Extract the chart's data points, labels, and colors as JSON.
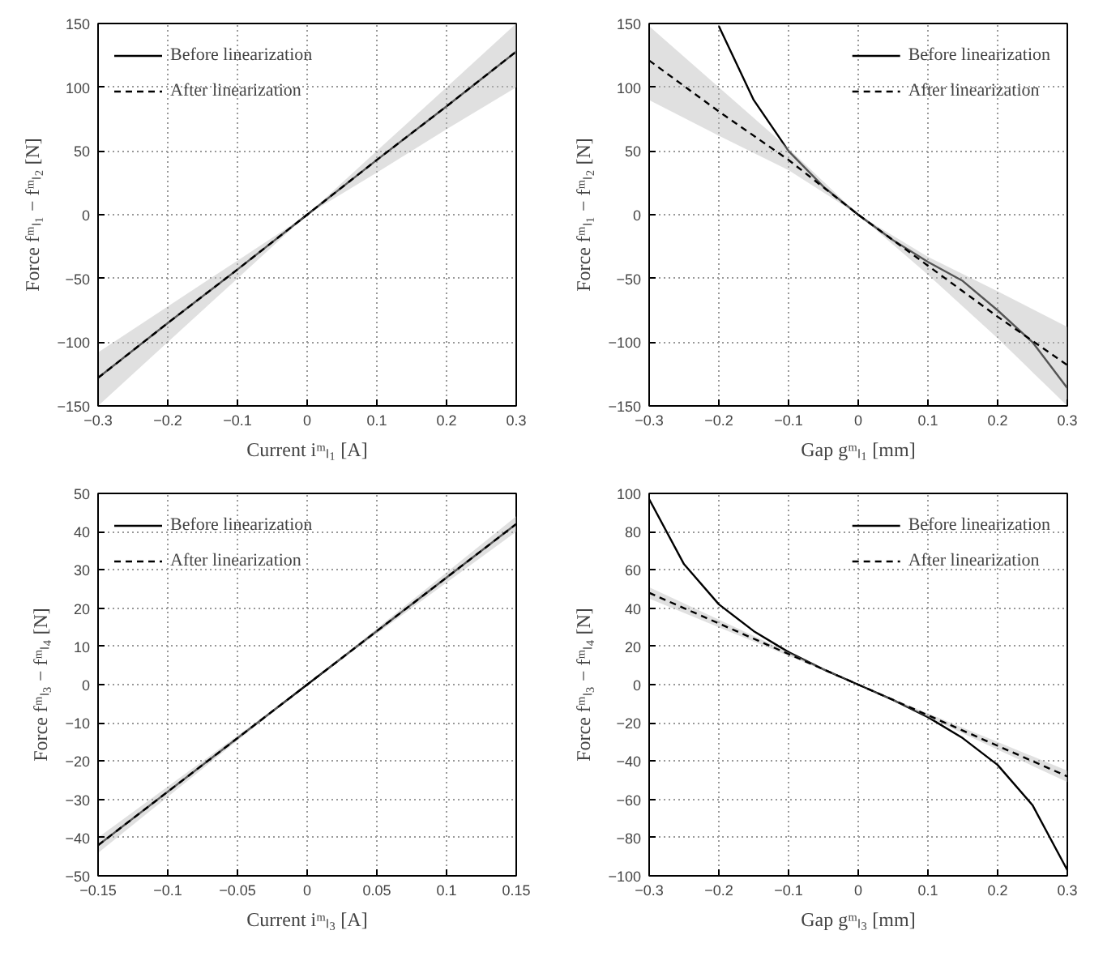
{
  "chart_data": [
    {
      "type": "line",
      "xlabel": "Current iᵐₗ₁ [A]",
      "ylabel": "Force fᵐₗ₁ − fᵐₗ₂ [N]",
      "xlim": [
        -0.3,
        0.3
      ],
      "ylim": [
        -150,
        150
      ],
      "xticks": [
        -0.3,
        -0.2,
        -0.1,
        0,
        0.1,
        0.2,
        0.3
      ],
      "yticks": [
        -150,
        -100,
        -50,
        0,
        50,
        100,
        150
      ],
      "grid": true,
      "legend": "top left",
      "series": [
        {
          "name": "Before linearization",
          "color": "#000000",
          "line_style": "solid",
          "x": [
            -0.3,
            -0.2,
            -0.1,
            0,
            0.1,
            0.2,
            0.3
          ],
          "values": [
            -128,
            -85,
            -43,
            0,
            43,
            85,
            128
          ]
        },
        {
          "name": "After linearization",
          "color": "#000000",
          "line_style": "dashed",
          "x": [
            -0.3,
            -0.2,
            -0.1,
            0,
            0.1,
            0.2,
            0.3
          ],
          "values": [
            -128,
            -85,
            -43,
            0,
            43,
            85,
            128
          ],
          "lower": [
            -150,
            -100,
            -50,
            0,
            33,
            67,
            100
          ],
          "upper": [
            -108,
            -72,
            -36,
            0,
            50,
            100,
            150
          ]
        }
      ]
    },
    {
      "type": "line",
      "xlabel": "Gap gᵐₗ₁ [mm]",
      "ylabel": "Force fᵐₗ₁ − fᵐₗ₂ [N]",
      "xlim": [
        -0.3,
        0.3
      ],
      "ylim": [
        -150,
        150
      ],
      "xticks": [
        -0.3,
        -0.2,
        -0.1,
        0,
        0.1,
        0.2,
        0.3
      ],
      "yticks": [
        -150,
        -100,
        -50,
        0,
        50,
        100,
        150
      ],
      "grid": true,
      "legend": "top right",
      "series": [
        {
          "name": "Before linearization",
          "color": "#000000",
          "line_style": "solid",
          "x": [
            -0.2,
            -0.15,
            -0.1,
            -0.05,
            0,
            0.05,
            0.1,
            0.15,
            0.2,
            0.25,
            0.3
          ],
          "values": [
            148,
            90,
            50,
            22,
            0,
            -20,
            -37,
            -52,
            -75,
            -100,
            -136
          ]
        },
        {
          "name": "After linearization",
          "color": "#000000",
          "line_style": "dashed",
          "x": [
            -0.3,
            -0.2,
            -0.1,
            0,
            0.1,
            0.2,
            0.3
          ],
          "values": [
            121,
            81,
            43,
            0,
            -40,
            -80,
            -118
          ],
          "lower": [
            90,
            62,
            35,
            0,
            -47,
            -97,
            -150
          ],
          "upper": [
            148,
            100,
            52,
            0,
            -33,
            -60,
            -88
          ]
        }
      ]
    },
    {
      "type": "line",
      "xlabel": "Current iᵐₗ₃ [A]",
      "ylabel": "Force fᵐₗ₃ − fᵐₗ₄ [N]",
      "xlim": [
        -0.15,
        0.15
      ],
      "ylim": [
        -50,
        50
      ],
      "xticks": [
        -0.15,
        -0.1,
        -0.05,
        0,
        0.05,
        0.1,
        0.15
      ],
      "yticks": [
        -50,
        -40,
        -30,
        -20,
        -10,
        0,
        10,
        20,
        30,
        40,
        50
      ],
      "grid": true,
      "legend": "top left",
      "series": [
        {
          "name": "Before linearization",
          "color": "#000000",
          "line_style": "solid",
          "x": [
            -0.15,
            0,
            0.15
          ],
          "values": [
            -42,
            0,
            42
          ]
        },
        {
          "name": "After linearization",
          "color": "#000000",
          "line_style": "dashed",
          "x": [
            -0.15,
            0,
            0.15
          ],
          "values": [
            -42,
            0,
            42
          ],
          "lower": [
            -44,
            0,
            40
          ],
          "upper": [
            -40,
            0,
            44
          ]
        }
      ]
    },
    {
      "type": "line",
      "xlabel": "Gap gᵐₗ₃ [mm]",
      "ylabel": "Force fᵐₗ₃ − fᵐₗ₄ [N]",
      "xlim": [
        -0.3,
        0.3
      ],
      "ylim": [
        -100,
        100
      ],
      "xticks": [
        -0.3,
        -0.2,
        -0.1,
        0,
        0.1,
        0.2,
        0.3
      ],
      "yticks": [
        -100,
        -80,
        -60,
        -40,
        -20,
        0,
        20,
        40,
        60,
        80,
        100
      ],
      "grid": true,
      "legend": "top right",
      "series": [
        {
          "name": "Before linearization",
          "color": "#000000",
          "line_style": "solid",
          "x": [
            -0.3,
            -0.25,
            -0.2,
            -0.15,
            -0.1,
            -0.05,
            0,
            0.05,
            0.1,
            0.15,
            0.2,
            0.25,
            0.3
          ],
          "values": [
            97,
            63,
            42,
            28,
            17,
            8,
            0,
            -8,
            -17,
            -28,
            -42,
            -63,
            -97
          ]
        },
        {
          "name": "After linearization",
          "color": "#000000",
          "line_style": "dashed",
          "x": [
            -0.3,
            -0.2,
            -0.1,
            0,
            0.1,
            0.2,
            0.3
          ],
          "values": [
            48,
            32,
            16,
            0,
            -16,
            -32,
            -48
          ],
          "lower": [
            45,
            30,
            15,
            0,
            -17,
            -34,
            -51
          ],
          "upper": [
            51,
            34,
            17,
            0,
            -15,
            -30,
            -45
          ]
        }
      ]
    }
  ]
}
